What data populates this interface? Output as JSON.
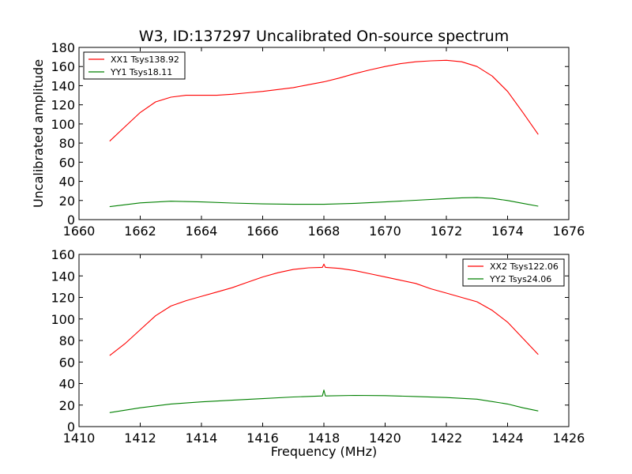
{
  "figure": {
    "title": "W3, ID:137297 Uncalibrated On-source spectrum",
    "ylabel": "Uncalibrated amplitude",
    "xlabel": "Frequency (MHz)"
  },
  "chart_data": [
    {
      "type": "line",
      "xlim": [
        1660,
        1676
      ],
      "ylim": [
        0,
        180
      ],
      "xticks": [
        1660,
        1662,
        1664,
        1666,
        1668,
        1670,
        1672,
        1674,
        1676
      ],
      "yticks": [
        0,
        20,
        40,
        60,
        80,
        100,
        120,
        140,
        160,
        180
      ],
      "grid": false,
      "legend_position": "top-left",
      "series": [
        {
          "name": "XX1 Tsys138.92",
          "color": "#ff0000",
          "x": [
            1661.0,
            1661.5,
            1662.0,
            1662.5,
            1663.0,
            1663.5,
            1664.0,
            1664.5,
            1665.0,
            1665.5,
            1666.0,
            1666.5,
            1667.0,
            1667.5,
            1668.0,
            1668.5,
            1669.0,
            1669.5,
            1670.0,
            1670.5,
            1671.0,
            1671.5,
            1672.0,
            1672.5,
            1673.0,
            1673.5,
            1674.0,
            1674.5,
            1675.0
          ],
          "y": [
            82,
            97,
            112,
            123,
            128,
            130,
            130,
            130,
            131,
            132.5,
            134,
            136,
            138,
            141,
            144,
            148,
            152.5,
            156.5,
            160,
            163,
            165,
            166,
            166.5,
            165,
            160,
            150,
            134,
            112,
            89
          ]
        },
        {
          "name": "YY1 Tsys18.11",
          "color": "#008000",
          "x": [
            1661.0,
            1662.0,
            1663.0,
            1664.0,
            1665.0,
            1666.0,
            1667.0,
            1668.0,
            1669.0,
            1670.0,
            1671.0,
            1672.0,
            1672.5,
            1673.0,
            1673.5,
            1674.0,
            1674.5,
            1675.0
          ],
          "y": [
            13.5,
            17.5,
            19.2,
            18.5,
            17.3,
            16.4,
            16.0,
            16.0,
            17.0,
            18.5,
            20.2,
            22.0,
            22.8,
            23.0,
            22.2,
            20.0,
            17.0,
            14.0
          ]
        }
      ]
    },
    {
      "type": "line",
      "xlim": [
        1410,
        1426
      ],
      "ylim": [
        0,
        160
      ],
      "xticks": [
        1410,
        1412,
        1414,
        1416,
        1418,
        1420,
        1422,
        1424,
        1426
      ],
      "yticks": [
        0,
        20,
        40,
        60,
        80,
        100,
        120,
        140,
        160
      ],
      "grid": false,
      "legend_position": "top-right",
      "series": [
        {
          "name": "XX2 Tsys122.06",
          "color": "#ff0000",
          "x": [
            1411.0,
            1411.5,
            1412.0,
            1412.5,
            1413.0,
            1413.5,
            1414.0,
            1414.5,
            1415.0,
            1415.5,
            1416.0,
            1416.5,
            1417.0,
            1417.5,
            1417.95,
            1418.0,
            1418.05,
            1418.5,
            1419.0,
            1419.5,
            1420.0,
            1420.5,
            1421.0,
            1421.5,
            1422.0,
            1422.5,
            1423.0,
            1423.5,
            1424.0,
            1424.5,
            1425.0
          ],
          "y": [
            66,
            77,
            90,
            103,
            112,
            117,
            121,
            125,
            129,
            134,
            139,
            143,
            146,
            147.5,
            148,
            151,
            148,
            147,
            145,
            142,
            139,
            136,
            133,
            128,
            124,
            120,
            116,
            108,
            97,
            82,
            67
          ]
        },
        {
          "name": "YY2 Tsys24.06",
          "color": "#008000",
          "x": [
            1411.0,
            1412.0,
            1413.0,
            1414.0,
            1415.0,
            1416.0,
            1417.0,
            1417.95,
            1418.0,
            1418.05,
            1419.0,
            1420.0,
            1421.0,
            1422.0,
            1423.0,
            1424.0,
            1424.5,
            1425.0
          ],
          "y": [
            13,
            17.5,
            21,
            23,
            24.5,
            26,
            27.5,
            28.5,
            34,
            28.5,
            29,
            28.8,
            28,
            27,
            25.5,
            21,
            17.5,
            14.5
          ]
        }
      ]
    }
  ]
}
